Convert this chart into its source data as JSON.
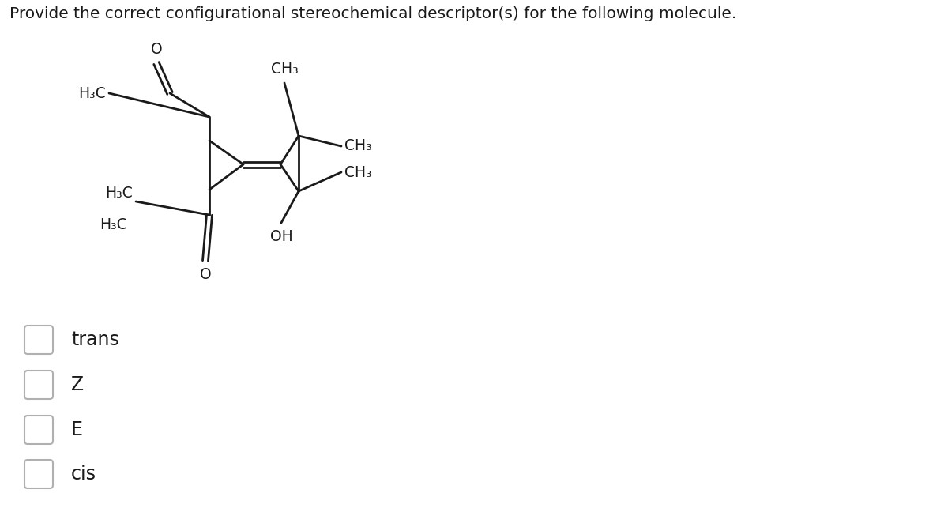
{
  "title": "Provide the correct configurational stereochemical descriptor(s) for the following molecule.",
  "title_fontsize": 14.5,
  "bg_color": "#ffffff",
  "line_color": "#1a1a1a",
  "text_color": "#1a1a1a",
  "options": [
    "trans",
    "Z",
    "E",
    "cis"
  ],
  "option_fontsize": 17,
  "mol_scale": 1.0
}
